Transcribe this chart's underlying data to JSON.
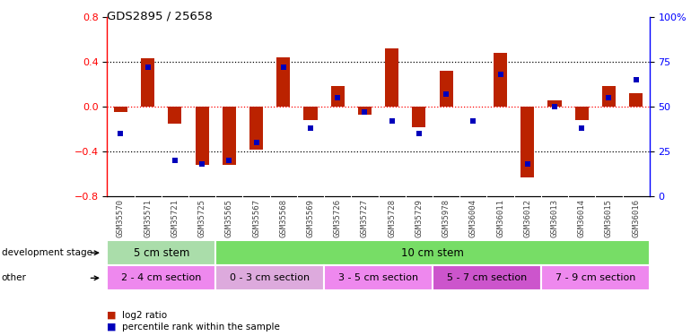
{
  "title": "GDS2895 / 25658",
  "samples": [
    "GSM35570",
    "GSM35571",
    "GSM35721",
    "GSM35725",
    "GSM35565",
    "GSM35567",
    "GSM35568",
    "GSM35569",
    "GSM35726",
    "GSM35727",
    "GSM35728",
    "GSM35729",
    "GSM35978",
    "GSM36004",
    "GSM36011",
    "GSM36012",
    "GSM36013",
    "GSM36014",
    "GSM36015",
    "GSM36016"
  ],
  "log2_ratio": [
    -0.05,
    0.43,
    -0.15,
    -0.52,
    -0.52,
    -0.38,
    0.44,
    -0.12,
    0.18,
    -0.07,
    0.52,
    -0.18,
    0.32,
    0.0,
    0.48,
    -0.63,
    0.06,
    -0.12,
    0.18,
    0.12
  ],
  "percentile": [
    35,
    72,
    20,
    18,
    20,
    30,
    72,
    38,
    55,
    47,
    42,
    35,
    57,
    42,
    68,
    18,
    50,
    38,
    55,
    65
  ],
  "ylim_left": [
    -0.8,
    0.8
  ],
  "ylim_right": [
    0,
    100
  ],
  "yticks_left": [
    -0.8,
    -0.4,
    0.0,
    0.4,
    0.8
  ],
  "yticks_right": [
    0,
    25,
    50,
    75,
    100
  ],
  "ytick_right_labels": [
    "0",
    "25",
    "50",
    "75",
    "100%"
  ],
  "bar_color": "#bb2200",
  "dot_color": "#0000bb",
  "dev_stage_groups": [
    {
      "label": "5 cm stem",
      "start": 0,
      "end": 4,
      "color": "#aaddaa"
    },
    {
      "label": "10 cm stem",
      "start": 4,
      "end": 20,
      "color": "#77dd66"
    }
  ],
  "other_groups": [
    {
      "label": "2 - 4 cm section",
      "start": 0,
      "end": 4,
      "color": "#ee88ee"
    },
    {
      "label": "0 - 3 cm section",
      "start": 4,
      "end": 8,
      "color": "#ddaadd"
    },
    {
      "label": "3 - 5 cm section",
      "start": 8,
      "end": 12,
      "color": "#ee88ee"
    },
    {
      "label": "5 - 7 cm section",
      "start": 12,
      "end": 16,
      "color": "#cc55cc"
    },
    {
      "label": "7 - 9 cm section",
      "start": 16,
      "end": 20,
      "color": "#ee88ee"
    }
  ],
  "legend_red_label": "log2 ratio",
  "legend_blue_label": "percentile rank within the sample",
  "dev_stage_label": "development stage",
  "other_label": "other"
}
